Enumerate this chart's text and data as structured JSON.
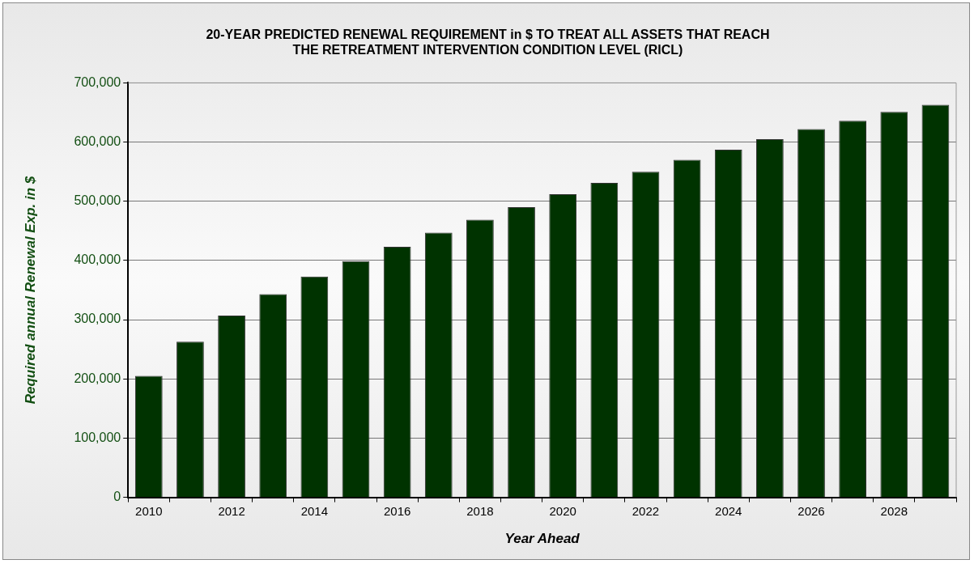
{
  "chart_data": {
    "type": "bar",
    "title": [
      "20-YEAR PREDICTED RENEWAL REQUIREMENT in $ TO TREAT ALL ASSETS THAT REACH",
      "THE RETREATMENT INTERVENTION CONDITION LEVEL (RICL)"
    ],
    "xlabel": "Year Ahead",
    "ylabel": "Required annual Renewal Exp. in $",
    "categories": [
      "2010",
      null,
      "2012",
      null,
      "2014",
      null,
      "2016",
      null,
      "2018",
      null,
      "2020",
      null,
      "2022",
      null,
      "2024",
      null,
      "2026",
      null,
      "2028",
      null
    ],
    "values": [
      205000,
      263000,
      307000,
      343000,
      373000,
      399000,
      423000,
      447000,
      469000,
      490000,
      512000,
      531000,
      550000,
      570000,
      587000,
      605000,
      622000,
      636000,
      651000,
      663000
    ],
    "color": "#003300",
    "ylim": [
      0,
      700000
    ],
    "yticks": [
      {
        "value": 0,
        "label": "0"
      },
      {
        "value": 100000,
        "label": "100,000"
      },
      {
        "value": 200000,
        "label": "200,000"
      },
      {
        "value": 300000,
        "label": "300,000"
      },
      {
        "value": 400000,
        "label": "400,000"
      },
      {
        "value": 500000,
        "label": "500,000"
      },
      {
        "value": 600000,
        "label": "600,000"
      },
      {
        "value": 700000,
        "label": "700,000"
      }
    ],
    "grid": "y",
    "legend": false
  }
}
